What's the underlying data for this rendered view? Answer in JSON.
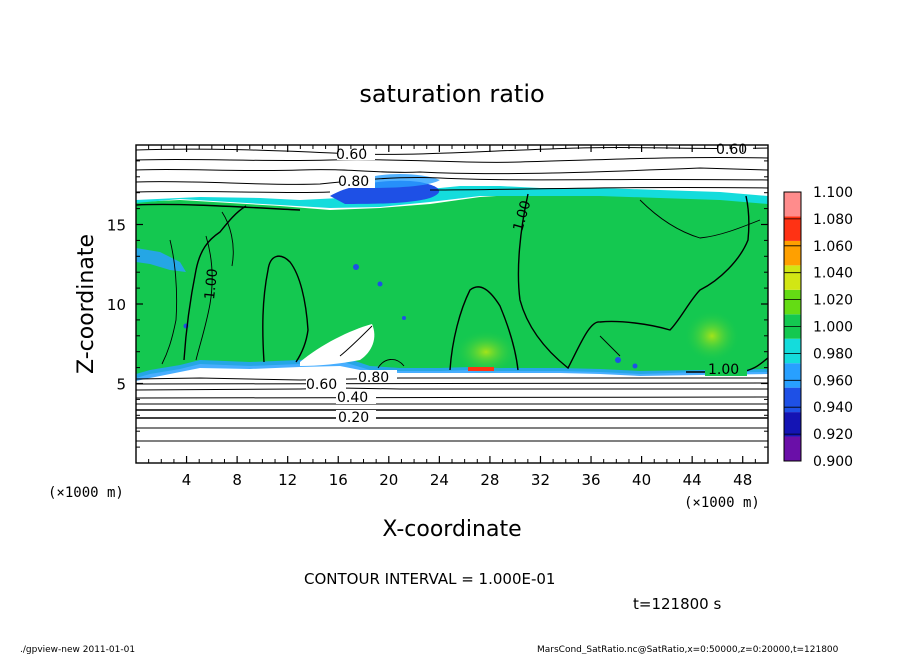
{
  "chart_data": {
    "type": "heatmap",
    "title": "saturation ratio",
    "xlabel": "X-coordinate",
    "ylabel": "Z-coordinate",
    "x_unit": "(×1000 m)",
    "y_unit": "(×1000 m)",
    "xlim": [
      0,
      50
    ],
    "ylim": [
      0,
      20
    ],
    "x_ticks": [
      4,
      8,
      12,
      16,
      20,
      24,
      28,
      32,
      36,
      40,
      44,
      48
    ],
    "y_ticks": [
      5,
      10,
      15
    ],
    "colorbar": {
      "levels": [
        0.9,
        0.92,
        0.94,
        0.96,
        0.98,
        1.0,
        1.02,
        1.04,
        1.06,
        1.08,
        1.1
      ],
      "labels": [
        "0.900",
        "0.920",
        "0.940",
        "0.960",
        "0.980",
        "1.000",
        "1.020",
        "1.040",
        "1.060",
        "1.080",
        "1.100"
      ],
      "colors": [
        "#6a0fa8",
        "#1414b4",
        "#1e50e6",
        "#28a0ff",
        "#14dcdc",
        "#14c850",
        "#64dc14",
        "#d2e614",
        "#ffa000",
        "#ff3214",
        "#ff8c8c"
      ]
    },
    "contour_labels": [
      "0.60",
      "0.60",
      "0.80",
      "1.00",
      "1.00",
      "1.00",
      "0.60",
      "0.80",
      "0.40",
      "0.20"
    ],
    "contour_interval": "CONTOUR INTERVAL = 1.000E-01",
    "time": "t=121800 s",
    "grid": false
  },
  "footer": {
    "left": "./gpview-new  2011-01-01",
    "right": "MarsCond_SatRatio.nc@SatRatio,x=0:50000,z=0:20000,t=121800"
  }
}
